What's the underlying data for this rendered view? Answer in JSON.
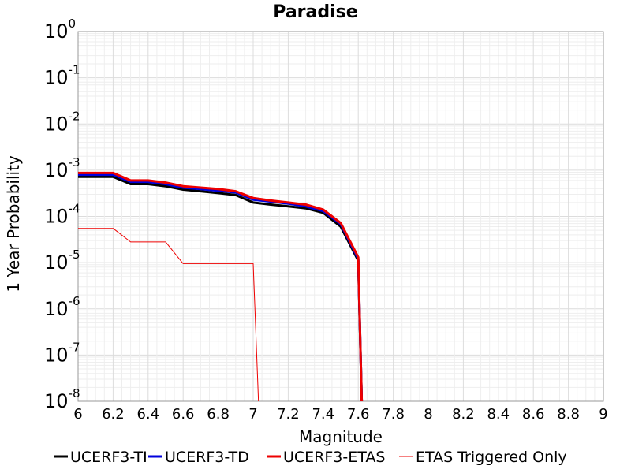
{
  "chart_data": {
    "type": "line",
    "title": "Paradise",
    "xlabel": "Magnitude",
    "ylabel": "1 Year Probability",
    "xlim": [
      6,
      9
    ],
    "ylim": [
      1e-08,
      1
    ],
    "y_scale": "log",
    "grid": true,
    "legend_placement": "bottom",
    "x_ticks": [
      "6",
      "6.2",
      "6.4",
      "6.6",
      "6.8",
      "7",
      "7.2",
      "7.4",
      "7.6",
      "7.8",
      "8",
      "8.2",
      "8.4",
      "8.6",
      "8.8",
      "9"
    ],
    "y_ticks": [
      {
        "base": "10",
        "exp": "0"
      },
      {
        "base": "10",
        "exp": "-1"
      },
      {
        "base": "10",
        "exp": "-2"
      },
      {
        "base": "10",
        "exp": "-3"
      },
      {
        "base": "10",
        "exp": "-4"
      },
      {
        "base": "10",
        "exp": "-5"
      },
      {
        "base": "10",
        "exp": "-6"
      },
      {
        "base": "10",
        "exp": "-7"
      },
      {
        "base": "10",
        "exp": "-8"
      }
    ],
    "series": [
      {
        "name": "UCERF3-TI",
        "color": "#000000",
        "style": "thick",
        "points": [
          [
            6.0,
            0.00072
          ],
          [
            6.2,
            0.00072
          ],
          [
            6.3,
            0.0005
          ],
          [
            6.4,
            0.0005
          ],
          [
            6.5,
            0.00045
          ],
          [
            6.6,
            0.00038
          ],
          [
            6.7,
            0.00035
          ],
          [
            6.8,
            0.00032
          ],
          [
            6.9,
            0.00029
          ],
          [
            7.0,
            0.0002
          ],
          [
            7.1,
            0.00018
          ],
          [
            7.2,
            0.000165
          ],
          [
            7.3,
            0.00015
          ],
          [
            7.4,
            0.00012
          ],
          [
            7.5,
            6e-05
          ],
          [
            7.6,
            1.1e-05
          ],
          [
            7.62,
            1e-08
          ]
        ]
      },
      {
        "name": "UCERF3-TD",
        "color": "#0000dd",
        "style": "thick",
        "points": [
          [
            6.0,
            0.0008
          ],
          [
            6.2,
            0.0008
          ],
          [
            6.3,
            0.00056
          ],
          [
            6.4,
            0.00056
          ],
          [
            6.5,
            0.0005
          ],
          [
            6.6,
            0.00042
          ],
          [
            6.7,
            0.00039
          ],
          [
            6.8,
            0.00036
          ],
          [
            6.9,
            0.00033
          ],
          [
            7.0,
            0.00023
          ],
          [
            7.1,
            0.00021
          ],
          [
            7.2,
            0.00019
          ],
          [
            7.3,
            0.000165
          ],
          [
            7.4,
            0.00013
          ],
          [
            7.5,
            6.8e-05
          ],
          [
            7.6,
            1.2e-05
          ],
          [
            7.62,
            1e-08
          ]
        ]
      },
      {
        "name": "UCERF3-ETAS",
        "color": "#ee0000",
        "style": "thick",
        "points": [
          [
            6.0,
            0.00087
          ],
          [
            6.2,
            0.00087
          ],
          [
            6.3,
            0.0006
          ],
          [
            6.4,
            0.0006
          ],
          [
            6.5,
            0.00054
          ],
          [
            6.6,
            0.00045
          ],
          [
            6.7,
            0.00042
          ],
          [
            6.8,
            0.00039
          ],
          [
            6.9,
            0.00035
          ],
          [
            7.0,
            0.00025
          ],
          [
            7.1,
            0.00022
          ],
          [
            7.2,
            0.0002
          ],
          [
            7.3,
            0.00018
          ],
          [
            7.4,
            0.00014
          ],
          [
            7.5,
            7.2e-05
          ],
          [
            7.6,
            1.3e-05
          ],
          [
            7.62,
            1e-08
          ]
        ]
      },
      {
        "name": "ETAS Triggered Only",
        "color": "#ee0000",
        "style": "thin",
        "points": [
          [
            6.0,
            5.5e-05
          ],
          [
            6.2,
            5.5e-05
          ],
          [
            6.3,
            2.8e-05
          ],
          [
            6.5,
            2.8e-05
          ],
          [
            6.6,
            9.5e-06
          ],
          [
            7.0,
            9.5e-06
          ],
          [
            7.03,
            1e-08
          ]
        ]
      }
    ]
  }
}
